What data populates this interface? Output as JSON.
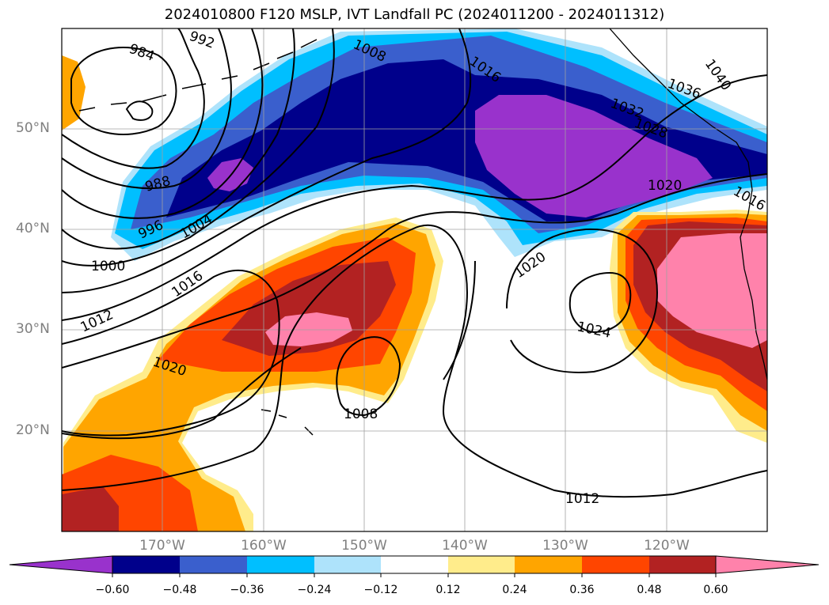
{
  "title": "2024010800 F120 MSLP, IVT Landfall PC (2024011200 - 2024011312)",
  "lat_labels": [
    "50°N",
    "40°N",
    "30°N",
    "20°N"
  ],
  "lon_labels": [
    "170°W",
    "160°W",
    "150°W",
    "140°W",
    "130°W",
    "120°W"
  ],
  "colorbar": {
    "tick_labels": [
      "−0.60",
      "−0.48",
      "−0.36",
      "−0.24",
      "−0.12",
      "0.12",
      "0.24",
      "0.36",
      "0.48",
      "0.60"
    ],
    "colors": [
      "#9932cc",
      "#00008b",
      "#3a5fcd",
      "#00bfff",
      "#aee3fb",
      "#ffffff",
      "#ffec8b",
      "#ffa500",
      "#ff4500",
      "#b22222",
      "#ff82ab"
    ],
    "extend": "both"
  },
  "isobar_labels": [
    "984",
    "992",
    "1008",
    "1016",
    "1036",
    "1040",
    "1032",
    "1028",
    "1020",
    "1016",
    "988",
    "996",
    "1004",
    "1000",
    "1016",
    "1012",
    "1020",
    "1020",
    "1024",
    "1008",
    "1012"
  ],
  "map": {
    "projection": "cylindrical",
    "lon_range": [
      -180,
      -110
    ],
    "lat_range": [
      10,
      60
    ],
    "gridlines": true,
    "field": "IVT Landfall PC",
    "contours": "MSLP (hPa)"
  }
}
